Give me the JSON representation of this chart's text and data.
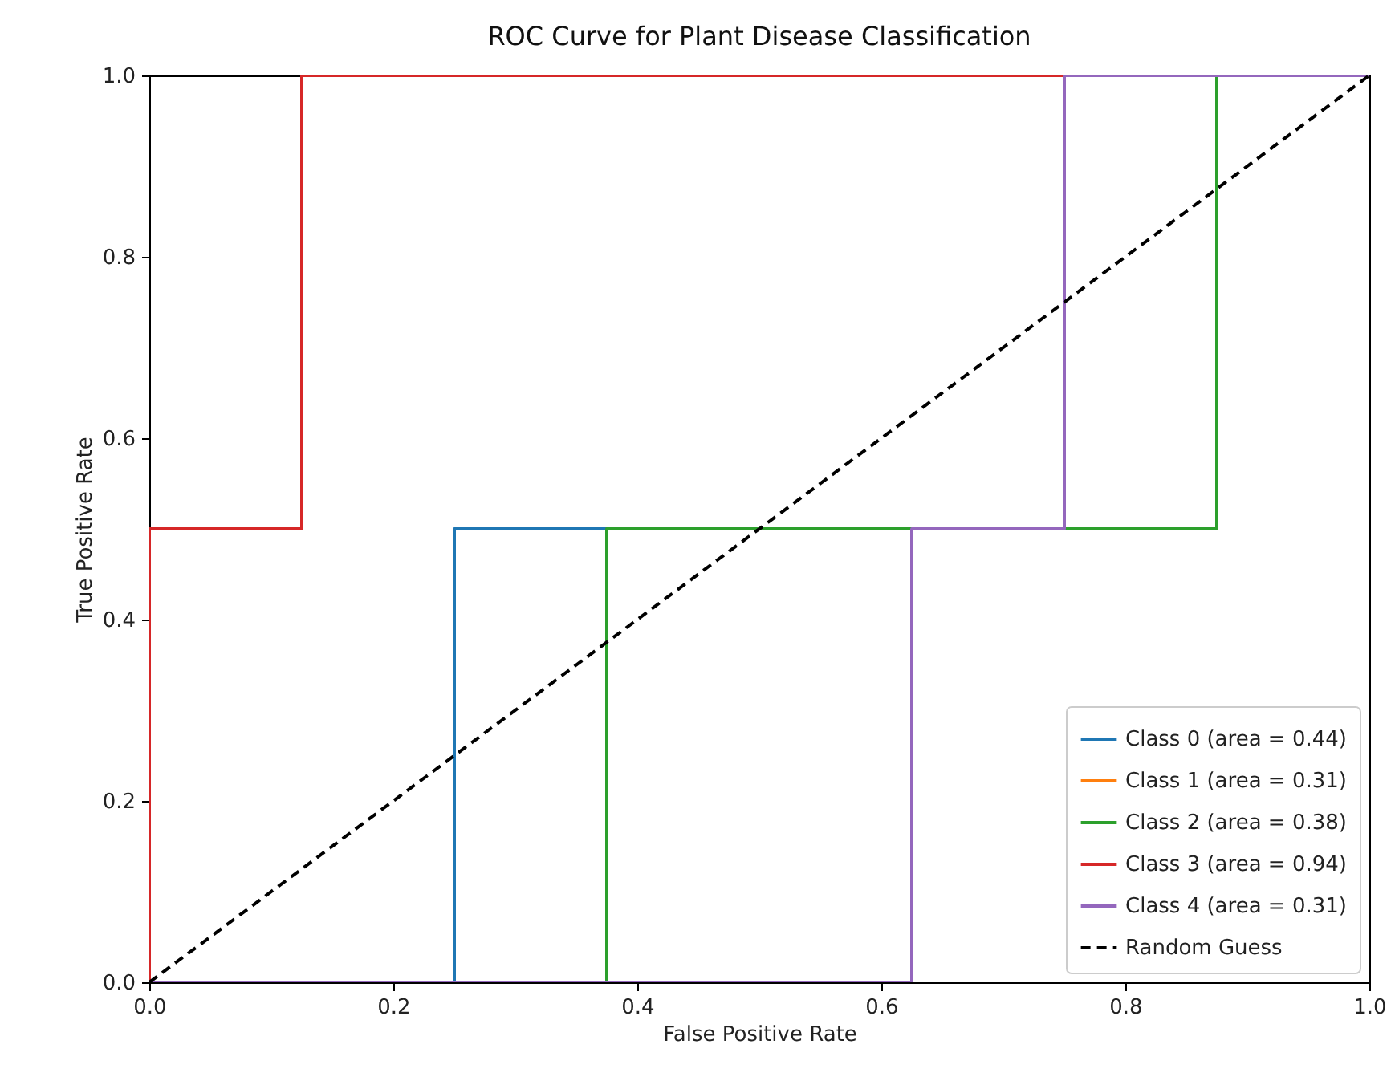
{
  "chart_data": {
    "type": "line",
    "title": "ROC Curve for Plant Disease Classification",
    "xlabel": "False Positive Rate",
    "ylabel": "True Positive Rate",
    "xlim": [
      0,
      1
    ],
    "ylim": [
      0,
      1
    ],
    "xticks": [
      {
        "value": 0,
        "label": "0.0"
      },
      {
        "value": 0.2,
        "label": "0.2"
      },
      {
        "value": 0.4,
        "label": "0.4"
      },
      {
        "value": 0.6,
        "label": "0.6"
      },
      {
        "value": 0.8,
        "label": "0.8"
      },
      {
        "value": 1,
        "label": "1.0"
      }
    ],
    "yticks": [
      {
        "value": 0,
        "label": "0.0"
      },
      {
        "value": 0.2,
        "label": "0.2"
      },
      {
        "value": 0.4,
        "label": "0.4"
      },
      {
        "value": 0.6,
        "label": "0.6"
      },
      {
        "value": 0.8,
        "label": "0.8"
      },
      {
        "value": 1,
        "label": "1.0"
      }
    ],
    "grid": false,
    "legend": "bottom right",
    "series": [
      {
        "name": "Class 0 (area = 0.44)",
        "color": "#1f77b4",
        "x": [
          0.25,
          0.25,
          0.375
        ],
        "values": [
          0,
          0.5,
          0.5
        ]
      },
      {
        "name": "Class 1 (area = 0.31)",
        "color": "#ff7f0e"
      },
      {
        "name": "Class 2 (area = 0.38)",
        "color": "#2ca02c",
        "x": [
          0,
          0.375,
          0.375,
          0.875,
          0.875,
          1
        ],
        "values": [
          0,
          0,
          0.5,
          0.5,
          1,
          1
        ]
      },
      {
        "name": "Class 3 (area = 0.94)",
        "color": "#d62728",
        "x": [
          0,
          0,
          0.125,
          0.125,
          1
        ],
        "values": [
          0,
          0.5,
          0.5,
          1,
          1
        ]
      },
      {
        "name": "Class 4 (area = 0.31)",
        "color": "#9467bd",
        "x": [
          0,
          0.625,
          0.625,
          0.75,
          0.75,
          1
        ],
        "values": [
          0,
          0,
          0.5,
          0.5,
          1,
          1
        ]
      },
      {
        "name": "Random Guess",
        "color": "#000000",
        "line_style": "dashed",
        "x": [
          0,
          1
        ],
        "values": [
          0,
          1
        ]
      }
    ]
  }
}
